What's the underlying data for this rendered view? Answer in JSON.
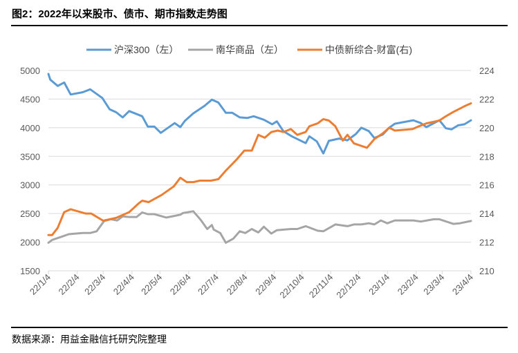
{
  "title": "图2：2022年以来股市、债市、期市指数走势图",
  "source": "数据来源：用益金融信托研究院整理",
  "chart_data": {
    "type": "line",
    "title": "图2：2022年以来股市、债市、期市指数走势图",
    "legend_position": "top",
    "grid": true,
    "x_axis": {
      "type": "date",
      "range": [
        "2022-01-04",
        "2023-04-04"
      ],
      "tick_labels": [
        "22/1/4",
        "22/2/4",
        "22/3/4",
        "22/4/4",
        "22/5/4",
        "22/6/4",
        "22/7/4",
        "22/8/4",
        "22/9/4",
        "22/10/4",
        "22/11/4",
        "22/12/4",
        "23/1/4",
        "23/2/4",
        "23/3/4",
        "23/4/4"
      ],
      "tick_dates": [
        "2022-01-04",
        "2022-02-04",
        "2022-03-04",
        "2022-04-04",
        "2022-05-04",
        "2022-06-04",
        "2022-07-04",
        "2022-08-04",
        "2022-09-04",
        "2022-10-04",
        "2022-11-04",
        "2022-12-04",
        "2023-01-04",
        "2023-02-04",
        "2023-03-04",
        "2023-04-04"
      ]
    },
    "y_left": {
      "range": [
        1500,
        5000
      ],
      "ticks": [
        "1500",
        "2000",
        "2500",
        "3000",
        "3500",
        "4000",
        "4500",
        "5000"
      ]
    },
    "y_right": {
      "range": [
        210,
        224
      ],
      "ticks": [
        "210",
        "212",
        "214",
        "216",
        "218",
        "220",
        "222",
        "224"
      ]
    },
    "series": [
      {
        "name": "沪深300（左）",
        "axis": "left",
        "color": "#5B9BD5",
        "points": [
          [
            "2022-01-04",
            4940
          ],
          [
            "2022-01-06",
            4840
          ],
          [
            "2022-01-14",
            4730
          ],
          [
            "2022-01-21",
            4790
          ],
          [
            "2022-01-28",
            4580
          ],
          [
            "2022-02-10",
            4620
          ],
          [
            "2022-02-18",
            4670
          ],
          [
            "2022-03-03",
            4520
          ],
          [
            "2022-03-11",
            4320
          ],
          [
            "2022-03-18",
            4270
          ],
          [
            "2022-03-25",
            4180
          ],
          [
            "2022-04-01",
            4290
          ],
          [
            "2022-04-15",
            4200
          ],
          [
            "2022-04-21",
            4020
          ],
          [
            "2022-04-28",
            4020
          ],
          [
            "2022-05-05",
            3910
          ],
          [
            "2022-05-20",
            4080
          ],
          [
            "2022-05-26",
            4010
          ],
          [
            "2022-05-31",
            4120
          ],
          [
            "2022-06-09",
            4250
          ],
          [
            "2022-06-21",
            4380
          ],
          [
            "2022-06-29",
            4490
          ],
          [
            "2022-07-06",
            4440
          ],
          [
            "2022-07-14",
            4260
          ],
          [
            "2022-07-21",
            4260
          ],
          [
            "2022-07-29",
            4180
          ],
          [
            "2022-08-06",
            4170
          ],
          [
            "2022-08-13",
            4200
          ],
          [
            "2022-08-24",
            4140
          ],
          [
            "2022-09-02",
            4060
          ],
          [
            "2022-09-07",
            4110
          ],
          [
            "2022-09-14",
            3940
          ],
          [
            "2022-09-23",
            3850
          ],
          [
            "2022-10-08",
            3730
          ],
          [
            "2022-10-12",
            3850
          ],
          [
            "2022-10-20",
            3760
          ],
          [
            "2022-10-27",
            3550
          ],
          [
            "2022-11-02",
            3770
          ],
          [
            "2022-11-13",
            3810
          ],
          [
            "2022-11-22",
            3780
          ],
          [
            "2022-12-01",
            3890
          ],
          [
            "2022-12-07",
            4000
          ],
          [
            "2022-12-15",
            3940
          ],
          [
            "2022-12-21",
            3820
          ],
          [
            "2022-12-30",
            3880
          ],
          [
            "2023-01-06",
            4000
          ],
          [
            "2023-01-12",
            4070
          ],
          [
            "2023-02-01",
            4130
          ],
          [
            "2023-02-09",
            4080
          ],
          [
            "2023-02-15",
            4010
          ],
          [
            "2023-03-01",
            4130
          ],
          [
            "2023-03-08",
            3990
          ],
          [
            "2023-03-14",
            3970
          ],
          [
            "2023-03-21",
            4040
          ],
          [
            "2023-03-28",
            4060
          ],
          [
            "2023-04-04",
            4130
          ]
        ]
      },
      {
        "name": "南华商品（左）",
        "axis": "left",
        "color": "#A5A5A5",
        "points": [
          [
            "2022-01-04",
            1990
          ],
          [
            "2022-01-08",
            2040
          ],
          [
            "2022-01-19",
            2100
          ],
          [
            "2022-01-26",
            2140
          ],
          [
            "2022-02-10",
            2160
          ],
          [
            "2022-02-18",
            2160
          ],
          [
            "2022-02-25",
            2190
          ],
          [
            "2022-03-05",
            2370
          ],
          [
            "2022-03-12",
            2400
          ],
          [
            "2022-03-19",
            2380
          ],
          [
            "2022-03-25",
            2450
          ],
          [
            "2022-04-01",
            2440
          ],
          [
            "2022-04-09",
            2440
          ],
          [
            "2022-04-15",
            2520
          ],
          [
            "2022-04-21",
            2490
          ],
          [
            "2022-04-28",
            2490
          ],
          [
            "2022-05-11",
            2430
          ],
          [
            "2022-05-20",
            2460
          ],
          [
            "2022-05-26",
            2480
          ],
          [
            "2022-05-29",
            2510
          ],
          [
            "2022-06-09",
            2540
          ],
          [
            "2022-06-17",
            2390
          ],
          [
            "2022-06-24",
            2230
          ],
          [
            "2022-06-29",
            2300
          ],
          [
            "2022-07-01",
            2220
          ],
          [
            "2022-07-08",
            2160
          ],
          [
            "2022-07-14",
            1990
          ],
          [
            "2022-07-22",
            2060
          ],
          [
            "2022-07-29",
            2190
          ],
          [
            "2022-08-04",
            2160
          ],
          [
            "2022-08-11",
            2230
          ],
          [
            "2022-08-18",
            2170
          ],
          [
            "2022-08-24",
            2270
          ],
          [
            "2022-09-01",
            2150
          ],
          [
            "2022-09-07",
            2210
          ],
          [
            "2022-09-22",
            2230
          ],
          [
            "2022-09-29",
            2230
          ],
          [
            "2022-10-08",
            2280
          ],
          [
            "2022-10-21",
            2200
          ],
          [
            "2022-10-27",
            2190
          ],
          [
            "2022-11-09",
            2310
          ],
          [
            "2022-11-22",
            2280
          ],
          [
            "2022-11-29",
            2310
          ],
          [
            "2022-12-07",
            2310
          ],
          [
            "2022-12-15",
            2330
          ],
          [
            "2022-12-21",
            2310
          ],
          [
            "2022-12-28",
            2380
          ],
          [
            "2023-01-04",
            2330
          ],
          [
            "2023-01-12",
            2380
          ],
          [
            "2023-02-01",
            2380
          ],
          [
            "2023-02-09",
            2360
          ],
          [
            "2023-02-23",
            2400
          ],
          [
            "2023-03-01",
            2400
          ],
          [
            "2023-03-16",
            2320
          ],
          [
            "2023-03-23",
            2330
          ],
          [
            "2023-04-04",
            2370
          ]
        ]
      },
      {
        "name": "中债新综合-财富(右)",
        "axis": "right",
        "color": "#ED7D31",
        "points": [
          [
            "2022-01-04",
            212.5
          ],
          [
            "2022-01-08",
            212.5
          ],
          [
            "2022-01-14",
            213.0
          ],
          [
            "2022-01-21",
            214.1
          ],
          [
            "2022-01-28",
            214.3
          ],
          [
            "2022-02-13",
            214.0
          ],
          [
            "2022-02-19",
            214.0
          ],
          [
            "2022-03-04",
            213.5
          ],
          [
            "2022-03-18",
            213.7
          ],
          [
            "2022-04-01",
            214.1
          ],
          [
            "2022-04-11",
            214.7
          ],
          [
            "2022-04-15",
            214.9
          ],
          [
            "2022-04-22",
            214.8
          ],
          [
            "2022-05-06",
            215.3
          ],
          [
            "2022-05-19",
            215.9
          ],
          [
            "2022-05-26",
            216.5
          ],
          [
            "2022-06-02",
            216.2
          ],
          [
            "2022-06-09",
            216.2
          ],
          [
            "2022-06-16",
            216.3
          ],
          [
            "2022-06-28",
            216.3
          ],
          [
            "2022-07-06",
            216.4
          ],
          [
            "2022-07-14",
            217.0
          ],
          [
            "2022-07-26",
            217.8
          ],
          [
            "2022-08-03",
            218.4
          ],
          [
            "2022-08-11",
            218.4
          ],
          [
            "2022-08-18",
            219.5
          ],
          [
            "2022-08-25",
            219.3
          ],
          [
            "2022-09-01",
            219.7
          ],
          [
            "2022-09-08",
            219.8
          ],
          [
            "2022-09-14",
            219.7
          ],
          [
            "2022-09-22",
            219.9
          ],
          [
            "2022-09-29",
            219.5
          ],
          [
            "2022-10-08",
            219.7
          ],
          [
            "2022-10-12",
            220.1
          ],
          [
            "2022-10-21",
            220.3
          ],
          [
            "2022-10-27",
            220.6
          ],
          [
            "2022-11-02",
            220.5
          ],
          [
            "2022-11-09",
            220.1
          ],
          [
            "2022-11-17",
            219.1
          ],
          [
            "2022-11-22",
            219.5
          ],
          [
            "2022-11-29",
            218.9
          ],
          [
            "2022-12-13",
            218.6
          ],
          [
            "2022-12-21",
            219.2
          ],
          [
            "2022-12-30",
            219.6
          ],
          [
            "2023-01-06",
            220.0
          ],
          [
            "2023-01-12",
            219.8
          ],
          [
            "2023-01-31",
            219.9
          ],
          [
            "2023-02-07",
            220.1
          ],
          [
            "2023-02-15",
            220.3
          ],
          [
            "2023-03-01",
            220.5
          ],
          [
            "2023-03-08",
            220.8
          ],
          [
            "2023-03-16",
            221.1
          ],
          [
            "2023-03-28",
            221.5
          ],
          [
            "2023-04-04",
            221.7
          ]
        ]
      }
    ]
  }
}
